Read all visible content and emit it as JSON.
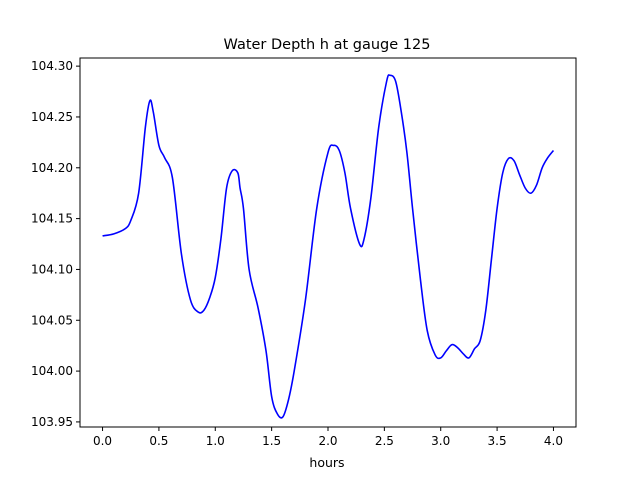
{
  "chart_data": {
    "type": "line",
    "title": "Water Depth h at gauge 125",
    "xlabel": "hours",
    "ylabel": "",
    "xlim": [
      -0.2,
      4.2
    ],
    "ylim": [
      103.945,
      104.308
    ],
    "x_ticks": [
      0.0,
      0.5,
      1.0,
      1.5,
      2.0,
      2.5,
      3.0,
      3.5,
      4.0
    ],
    "x_tick_labels": [
      "0.0",
      "0.5",
      "1.0",
      "1.5",
      "2.0",
      "2.5",
      "3.0",
      "3.5",
      "4.0"
    ],
    "y_ticks": [
      103.95,
      104.0,
      104.05,
      104.1,
      104.15,
      104.2,
      104.25,
      104.3
    ],
    "y_tick_labels": [
      "103.95",
      "104.00",
      "104.05",
      "104.10",
      "104.15",
      "104.20",
      "104.25",
      "104.30"
    ],
    "grid": false,
    "series": [
      {
        "color": "#0000ff",
        "x": [
          0.0,
          0.1,
          0.2,
          0.25,
          0.32,
          0.38,
          0.42,
          0.45,
          0.5,
          0.55,
          0.62,
          0.7,
          0.78,
          0.85,
          0.9,
          0.95,
          1.0,
          1.05,
          1.1,
          1.15,
          1.2,
          1.22,
          1.25,
          1.3,
          1.38,
          1.45,
          1.5,
          1.55,
          1.6,
          1.65,
          1.7,
          1.8,
          1.9,
          2.0,
          2.05,
          2.1,
          2.15,
          2.2,
          2.28,
          2.32,
          2.38,
          2.45,
          2.52,
          2.55,
          2.6,
          2.65,
          2.7,
          2.75,
          2.82,
          2.88,
          2.95,
          3.0,
          3.05,
          3.1,
          3.15,
          3.2,
          3.25,
          3.3,
          3.35,
          3.4,
          3.45,
          3.5,
          3.55,
          3.6,
          3.65,
          3.7,
          3.75,
          3.8,
          3.85,
          3.9,
          3.95,
          4.0
        ],
        "y": [
          104.133,
          104.135,
          104.14,
          104.148,
          104.175,
          104.24,
          104.266,
          104.255,
          104.222,
          104.21,
          104.19,
          104.115,
          104.07,
          104.058,
          104.06,
          104.072,
          104.092,
          104.13,
          104.18,
          104.197,
          104.195,
          104.18,
          104.16,
          104.1,
          104.062,
          104.02,
          103.975,
          103.958,
          103.955,
          103.972,
          104.0,
          104.07,
          104.16,
          104.215,
          104.222,
          104.217,
          104.195,
          104.16,
          104.125,
          104.13,
          104.17,
          104.24,
          104.285,
          104.291,
          104.285,
          104.255,
          104.215,
          104.16,
          104.09,
          104.04,
          104.016,
          104.013,
          104.02,
          104.026,
          104.023,
          104.017,
          104.013,
          104.022,
          104.03,
          104.06,
          104.11,
          104.16,
          104.195,
          104.209,
          104.207,
          104.193,
          104.18,
          104.175,
          104.183,
          104.2,
          104.21,
          104.217
        ]
      }
    ]
  }
}
